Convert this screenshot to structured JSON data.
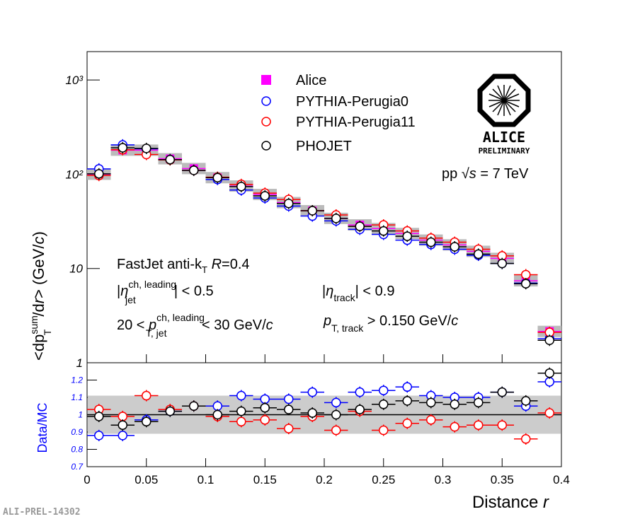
{
  "chart_data": {
    "type": "scatter",
    "y_label": [
      "<dp",
      "sum",
      "T",
      "/d",
      "r",
      "> (GeV/",
      "c",
      ")"
    ],
    "x_label": [
      "Distance ",
      "r"
    ],
    "ratio_label": "Data/MC",
    "log_y": true,
    "x": [
      0.01,
      0.03,
      0.05,
      0.07,
      0.09,
      0.11,
      0.13,
      0.15,
      0.17,
      0.19,
      0.21,
      0.23,
      0.25,
      0.27,
      0.29,
      0.31,
      0.33,
      0.35,
      0.37,
      0.39
    ],
    "xlim": [
      0,
      0.4
    ],
    "xticks": [
      0,
      0.05,
      0.1,
      0.15,
      0.2,
      0.25,
      0.3,
      0.35,
      0.4
    ],
    "ylim": [
      1,
      2000
    ],
    "yticks": [
      {
        "value": 1,
        "label": "1"
      },
      {
        "value": 10,
        "label": "10"
      },
      {
        "value": 100,
        "label": "10²"
      },
      {
        "value": 1000,
        "label": "10³"
      }
    ],
    "series": [
      {
        "name": "Alice",
        "color": "#ff00ff",
        "values": [
          100,
          180,
          180,
          146,
          115,
          92,
          75,
          61,
          50,
          41,
          34,
          29,
          26.5,
          23.5,
          20,
          17.8,
          15.2,
          12.8,
          7.4,
          2.15
        ]
      },
      {
        "name": "PYTHIA-Perugia0",
        "color": "#0000ff",
        "values": [
          114,
          205,
          186,
          143,
          110,
          88,
          68,
          56,
          46,
          36,
          32,
          26,
          23,
          20,
          18,
          16,
          13.8,
          11.3,
          7.0,
          1.8
        ]
      },
      {
        "name": "PYTHIA-Perugia11",
        "color": "#ff0000",
        "values": [
          97,
          182,
          162,
          142,
          110,
          93,
          78,
          63,
          54,
          41,
          37,
          28,
          29,
          25,
          21,
          19,
          16,
          13.6,
          8.6,
          2.1
        ]
      },
      {
        "name": "PHOJET",
        "color": "#000000",
        "values": [
          101,
          191,
          188,
          143,
          110,
          92,
          74,
          59,
          49,
          41,
          34,
          28,
          25,
          22,
          19,
          17,
          14.2,
          11.3,
          6.9,
          1.73
        ]
      }
    ],
    "ratio_ylim": [
      0.7,
      1.3
    ],
    "ratio_yticks": [
      0.7,
      0.8,
      0.9,
      1,
      1.1,
      1.2
    ],
    "ratio_band": [
      0.89,
      1.11
    ],
    "ratio_series": [
      {
        "name": "PYTHIA-Perugia0",
        "color": "#0000ff",
        "values": [
          0.88,
          0.88,
          0.97,
          1.02,
          1.05,
          1.05,
          1.11,
          1.09,
          1.09,
          1.13,
          1.07,
          1.13,
          1.14,
          1.16,
          1.11,
          1.1,
          1.1,
          1.13,
          1.05,
          1.19
        ]
      },
      {
        "name": "PYTHIA-Perugia11",
        "color": "#ff0000",
        "values": [
          1.03,
          0.99,
          1.11,
          1.03,
          1.05,
          0.99,
          0.96,
          0.97,
          0.92,
          0.99,
          0.91,
          1.02,
          0.91,
          0.95,
          0.97,
          0.93,
          0.94,
          0.94,
          0.86,
          1.01
        ]
      },
      {
        "name": "PHOJET",
        "color": "#000000",
        "values": [
          0.99,
          0.94,
          0.96,
          1.02,
          1.05,
          1.0,
          1.02,
          1.04,
          1.03,
          1.01,
          1.0,
          1.03,
          1.06,
          1.08,
          1.07,
          1.06,
          1.07,
          1.13,
          1.08,
          1.24
        ]
      }
    ],
    "annotations": {
      "energy": [
        "pp ",
        "√",
        "s",
        " = 7 TeV"
      ],
      "jet": [
        "FastJet anti-k",
        "T",
        " ",
        "R",
        "=0.4"
      ],
      "eta_jet": [
        "|",
        "η",
        "ch, leading",
        "jet",
        "| < 0.5"
      ],
      "pt_jet": [
        "20 < ",
        "p",
        "ch, leading",
        "T, jet",
        " < 30 GeV/",
        "c"
      ],
      "eta_track": [
        "|",
        "η",
        "track",
        "| < 0.9"
      ],
      "pt_track": [
        "p",
        "T, track",
        " > 0.150 GeV/",
        "c"
      ]
    },
    "logo": [
      "ALICE",
      "PRELIMINARY"
    ],
    "reference": "ALI-PREL-14302"
  }
}
